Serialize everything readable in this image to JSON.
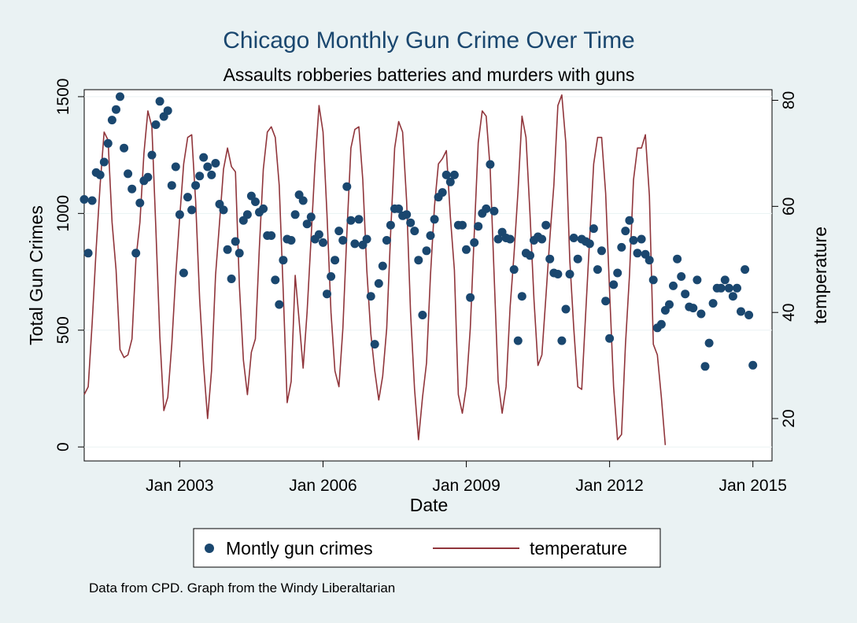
{
  "chart_data": {
    "type": "scatter+line",
    "title": "Chicago Monthly Gun Crime Over Time",
    "subtitle": "Assaults robberies batteries and murders with guns",
    "xlabel": "Date",
    "ylabel_left": "Total Gun Crimes",
    "ylabel_right": "temperature",
    "xlim": [
      2001.0,
      2015.4
    ],
    "ylim_left": [
      -60,
      1530
    ],
    "ylim_right": [
      12,
      82
    ],
    "x_ticks": [
      {
        "value": 2003.0,
        "label": "Jan 2003"
      },
      {
        "value": 2006.0,
        "label": "Jan 2006"
      },
      {
        "value": 2009.0,
        "label": "Jan 2009"
      },
      {
        "value": 2012.0,
        "label": "Jan 2012"
      },
      {
        "value": 2015.0,
        "label": "Jan 2015"
      }
    ],
    "y_left_ticks": [
      0,
      500,
      1000,
      1500
    ],
    "y_right_ticks": [
      20,
      40,
      60,
      80
    ],
    "x_start": 2001.0,
    "x_step": 0.08333,
    "series": [
      {
        "name": "Montly gun crimes",
        "type": "scatter",
        "axis": "left",
        "color": "#1a476f",
        "values": [
          1060,
          830,
          1055,
          1175,
          1165,
          1220,
          1300,
          1400,
          1445,
          1500,
          1280,
          1170,
          1105,
          830,
          1045,
          1140,
          1155,
          1250,
          1380,
          1480,
          1415,
          1440,
          1120,
          1200,
          995,
          745,
          1070,
          1015,
          1120,
          1160,
          1240,
          1200,
          1165,
          1215,
          1040,
          1015,
          845,
          720,
          880,
          830,
          970,
          995,
          1075,
          1050,
          1005,
          1020,
          905,
          905,
          715,
          610,
          800,
          890,
          885,
          995,
          1080,
          1055,
          955,
          985,
          890,
          910,
          875,
          655,
          730,
          800,
          925,
          885,
          1115,
          970,
          870,
          975,
          865,
          890,
          645,
          440,
          700,
          775,
          885,
          950,
          1020,
          1020,
          990,
          995,
          960,
          925,
          800,
          565,
          840,
          905,
          975,
          1070,
          1090,
          1165,
          1135,
          1165,
          950,
          950,
          845,
          640,
          875,
          945,
          1000,
          1020,
          1210,
          1010,
          890,
          920,
          895,
          890,
          760,
          455,
          645,
          830,
          820,
          885,
          900,
          890,
          950,
          805,
          745,
          740,
          455,
          590,
          740,
          895,
          805,
          890,
          880,
          870,
          935,
          760,
          840,
          625,
          465,
          695,
          745,
          855,
          925,
          970,
          885,
          830,
          890,
          825,
          800,
          715,
          510,
          525,
          585,
          610,
          690,
          805,
          730,
          655,
          600,
          595,
          715,
          570,
          345,
          445,
          615,
          680,
          680,
          715,
          680,
          645,
          680,
          580,
          760,
          565,
          350
        ]
      },
      {
        "name": "temperature",
        "type": "line",
        "axis": "right",
        "color": "#90353b",
        "values": [
          24.5,
          26,
          38,
          52,
          64,
          74,
          72.5,
          57,
          48,
          33,
          31.5,
          32,
          35,
          50,
          57,
          70,
          78,
          75,
          56,
          35.5,
          21.5,
          24,
          34,
          47,
          58,
          68,
          73,
          73.5,
          61,
          42.5,
          30,
          20,
          29,
          47,
          57,
          67,
          71,
          67.5,
          66.5,
          45,
          31,
          24.5,
          32.5,
          35,
          52,
          67,
          74,
          75,
          73,
          64,
          44,
          23,
          27,
          47,
          38.5,
          29.5,
          40,
          54,
          68,
          79,
          74,
          58.5,
          40,
          29,
          26,
          37,
          55,
          71,
          74.5,
          75,
          65,
          48,
          36,
          29,
          23.5,
          28,
          37,
          55,
          71,
          76,
          74,
          61,
          40,
          25.5,
          16,
          24,
          30.5,
          47,
          60,
          68,
          69,
          70.5,
          58,
          48,
          24.5,
          21,
          26,
          37,
          55,
          72,
          78,
          77,
          67,
          47,
          27,
          21,
          26,
          41,
          51,
          63,
          77,
          73,
          58.5,
          42.5,
          30,
          32,
          43,
          54,
          64,
          79,
          81,
          72,
          50,
          37,
          26,
          25.5,
          40,
          54,
          68,
          73,
          73,
          62.5,
          44,
          26,
          16,
          17,
          34,
          47,
          65,
          71,
          71,
          73.5,
          62,
          34,
          32,
          24,
          15
        ]
      }
    ],
    "legend": {
      "placement": "bottom",
      "labels": [
        "Montly gun crimes",
        "temperature"
      ]
    },
    "note": "Data from CPD. Graph from the Windy Liberaltarian"
  }
}
